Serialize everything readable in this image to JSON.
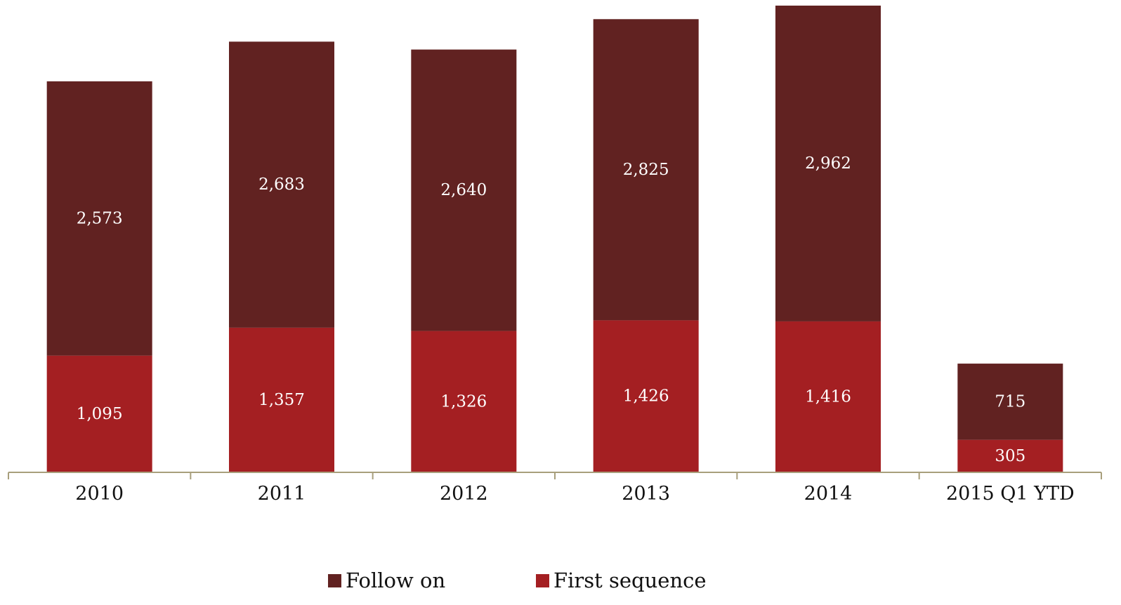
{
  "chart_data": {
    "type": "bar",
    "stacked": true,
    "categories": [
      "2010",
      "2011",
      "2012",
      "2013",
      "2014",
      "2015 Q1 YTD"
    ],
    "series": [
      {
        "name": "First sequence",
        "values": [
          1095,
          1357,
          1326,
          1426,
          1416,
          305
        ],
        "labels": [
          "1,095",
          "1,357",
          "1,326",
          "1,426",
          "1,416",
          "305"
        ],
        "color": "#a41f22"
      },
      {
        "name": "Follow on",
        "values": [
          2573,
          2683,
          2640,
          2825,
          2962,
          715
        ],
        "labels": [
          "2,573",
          "2,683",
          "2,640",
          "2,825",
          "2,962",
          "715"
        ],
        "color": "#612221"
      }
    ],
    "legend": {
      "position": "bottom",
      "items": [
        {
          "name": "Follow on",
          "color": "#612221"
        },
        {
          "name": "First sequence",
          "color": "#a41f22"
        }
      ]
    },
    "ylim": [
      0,
      4378
    ],
    "grid": false,
    "axis_color": "#a89f7c"
  }
}
